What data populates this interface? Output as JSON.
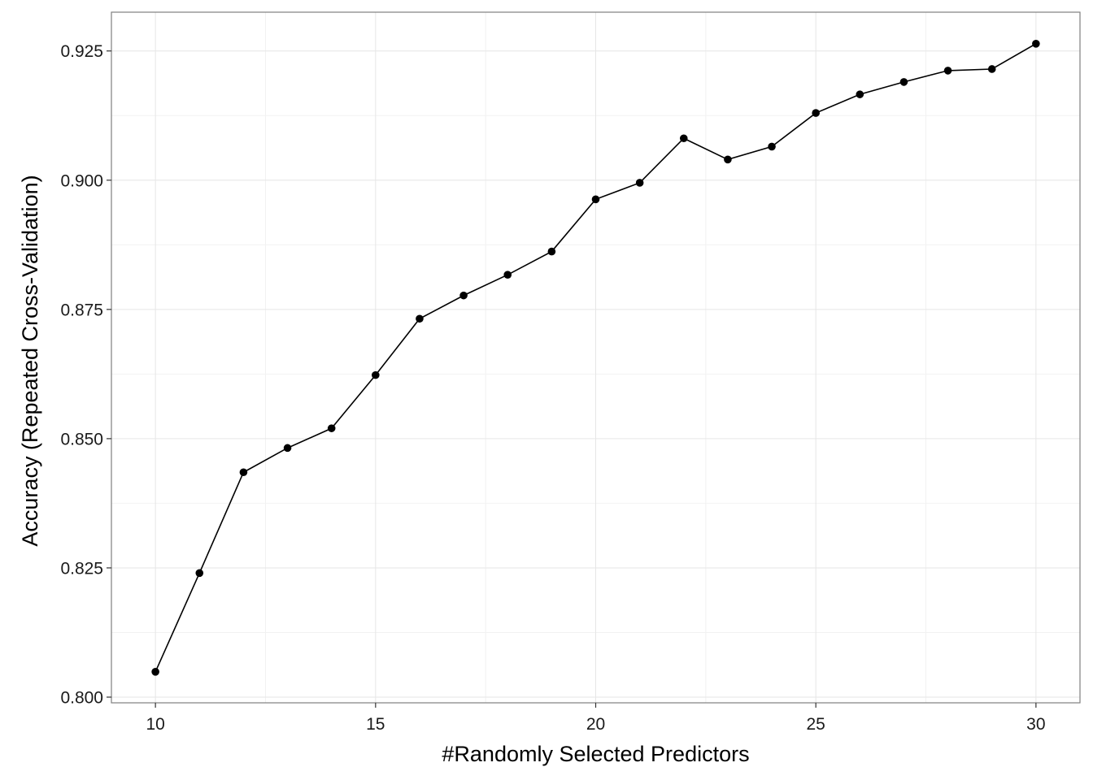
{
  "chart_data": {
    "type": "line",
    "title": "",
    "xlabel": "#Randomly Selected Predictors",
    "ylabel": "Accuracy (Repeated Cross-Validation)",
    "xlim": [
      9.0,
      31.0
    ],
    "ylim": [
      0.7989,
      0.9325
    ],
    "x_ticks": [
      10,
      15,
      20,
      25,
      30
    ],
    "x_tick_labels": [
      "10",
      "15",
      "20",
      "25",
      "30"
    ],
    "y_ticks": [
      0.8,
      0.825,
      0.85,
      0.875,
      0.9,
      0.925
    ],
    "y_tick_labels": [
      "0.800",
      "0.825",
      "0.850",
      "0.875",
      "0.900",
      "0.925"
    ],
    "grid": true,
    "legend": "none",
    "colors": {
      "series": "#000000",
      "grid_major": "#e6e6e6",
      "grid_minor": "#f2f2f2",
      "border": "#7f7f7f"
    },
    "series": [
      {
        "x": [
          10,
          11,
          12,
          13,
          14,
          15,
          16,
          17,
          18,
          19,
          20,
          21,
          22,
          23,
          24,
          25,
          26,
          27,
          28,
          29,
          30
        ],
        "values": [
          0.8049,
          0.824,
          0.8435,
          0.8482,
          0.852,
          0.8623,
          0.8732,
          0.8777,
          0.8817,
          0.8862,
          0.8963,
          0.8995,
          0.9081,
          0.904,
          0.9065,
          0.913,
          0.9166,
          0.919,
          0.9212,
          0.9215,
          0.9264
        ]
      }
    ]
  }
}
